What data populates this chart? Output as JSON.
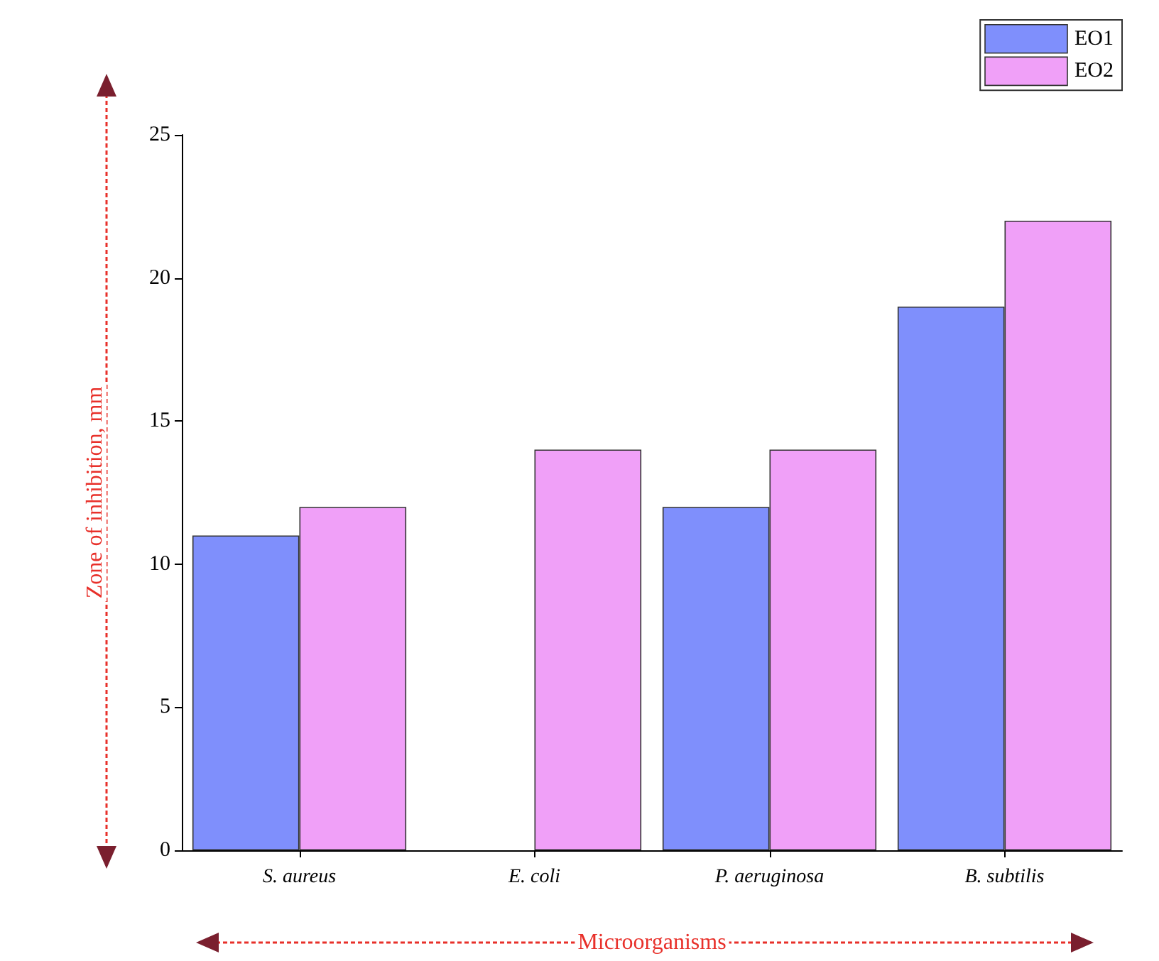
{
  "chart_data": {
    "type": "bar",
    "xlabel": "Microorganisms",
    "ylabel": "Zone of inhibition, mm",
    "categories": [
      "S. aureus",
      "E. coli",
      "P. aeruginosa",
      "B. subtilis"
    ],
    "series": [
      {
        "name": "EO1",
        "color": "#7f8ffc",
        "values": [
          11,
          null,
          12,
          19
        ]
      },
      {
        "name": "EO2",
        "color": "#f0a0f8",
        "values": [
          12,
          14,
          14,
          22
        ]
      }
    ],
    "ylim": [
      0,
      25
    ],
    "yticks": [
      0,
      5,
      10,
      15,
      20,
      25
    ],
    "grid": false,
    "legend": "top right"
  }
}
